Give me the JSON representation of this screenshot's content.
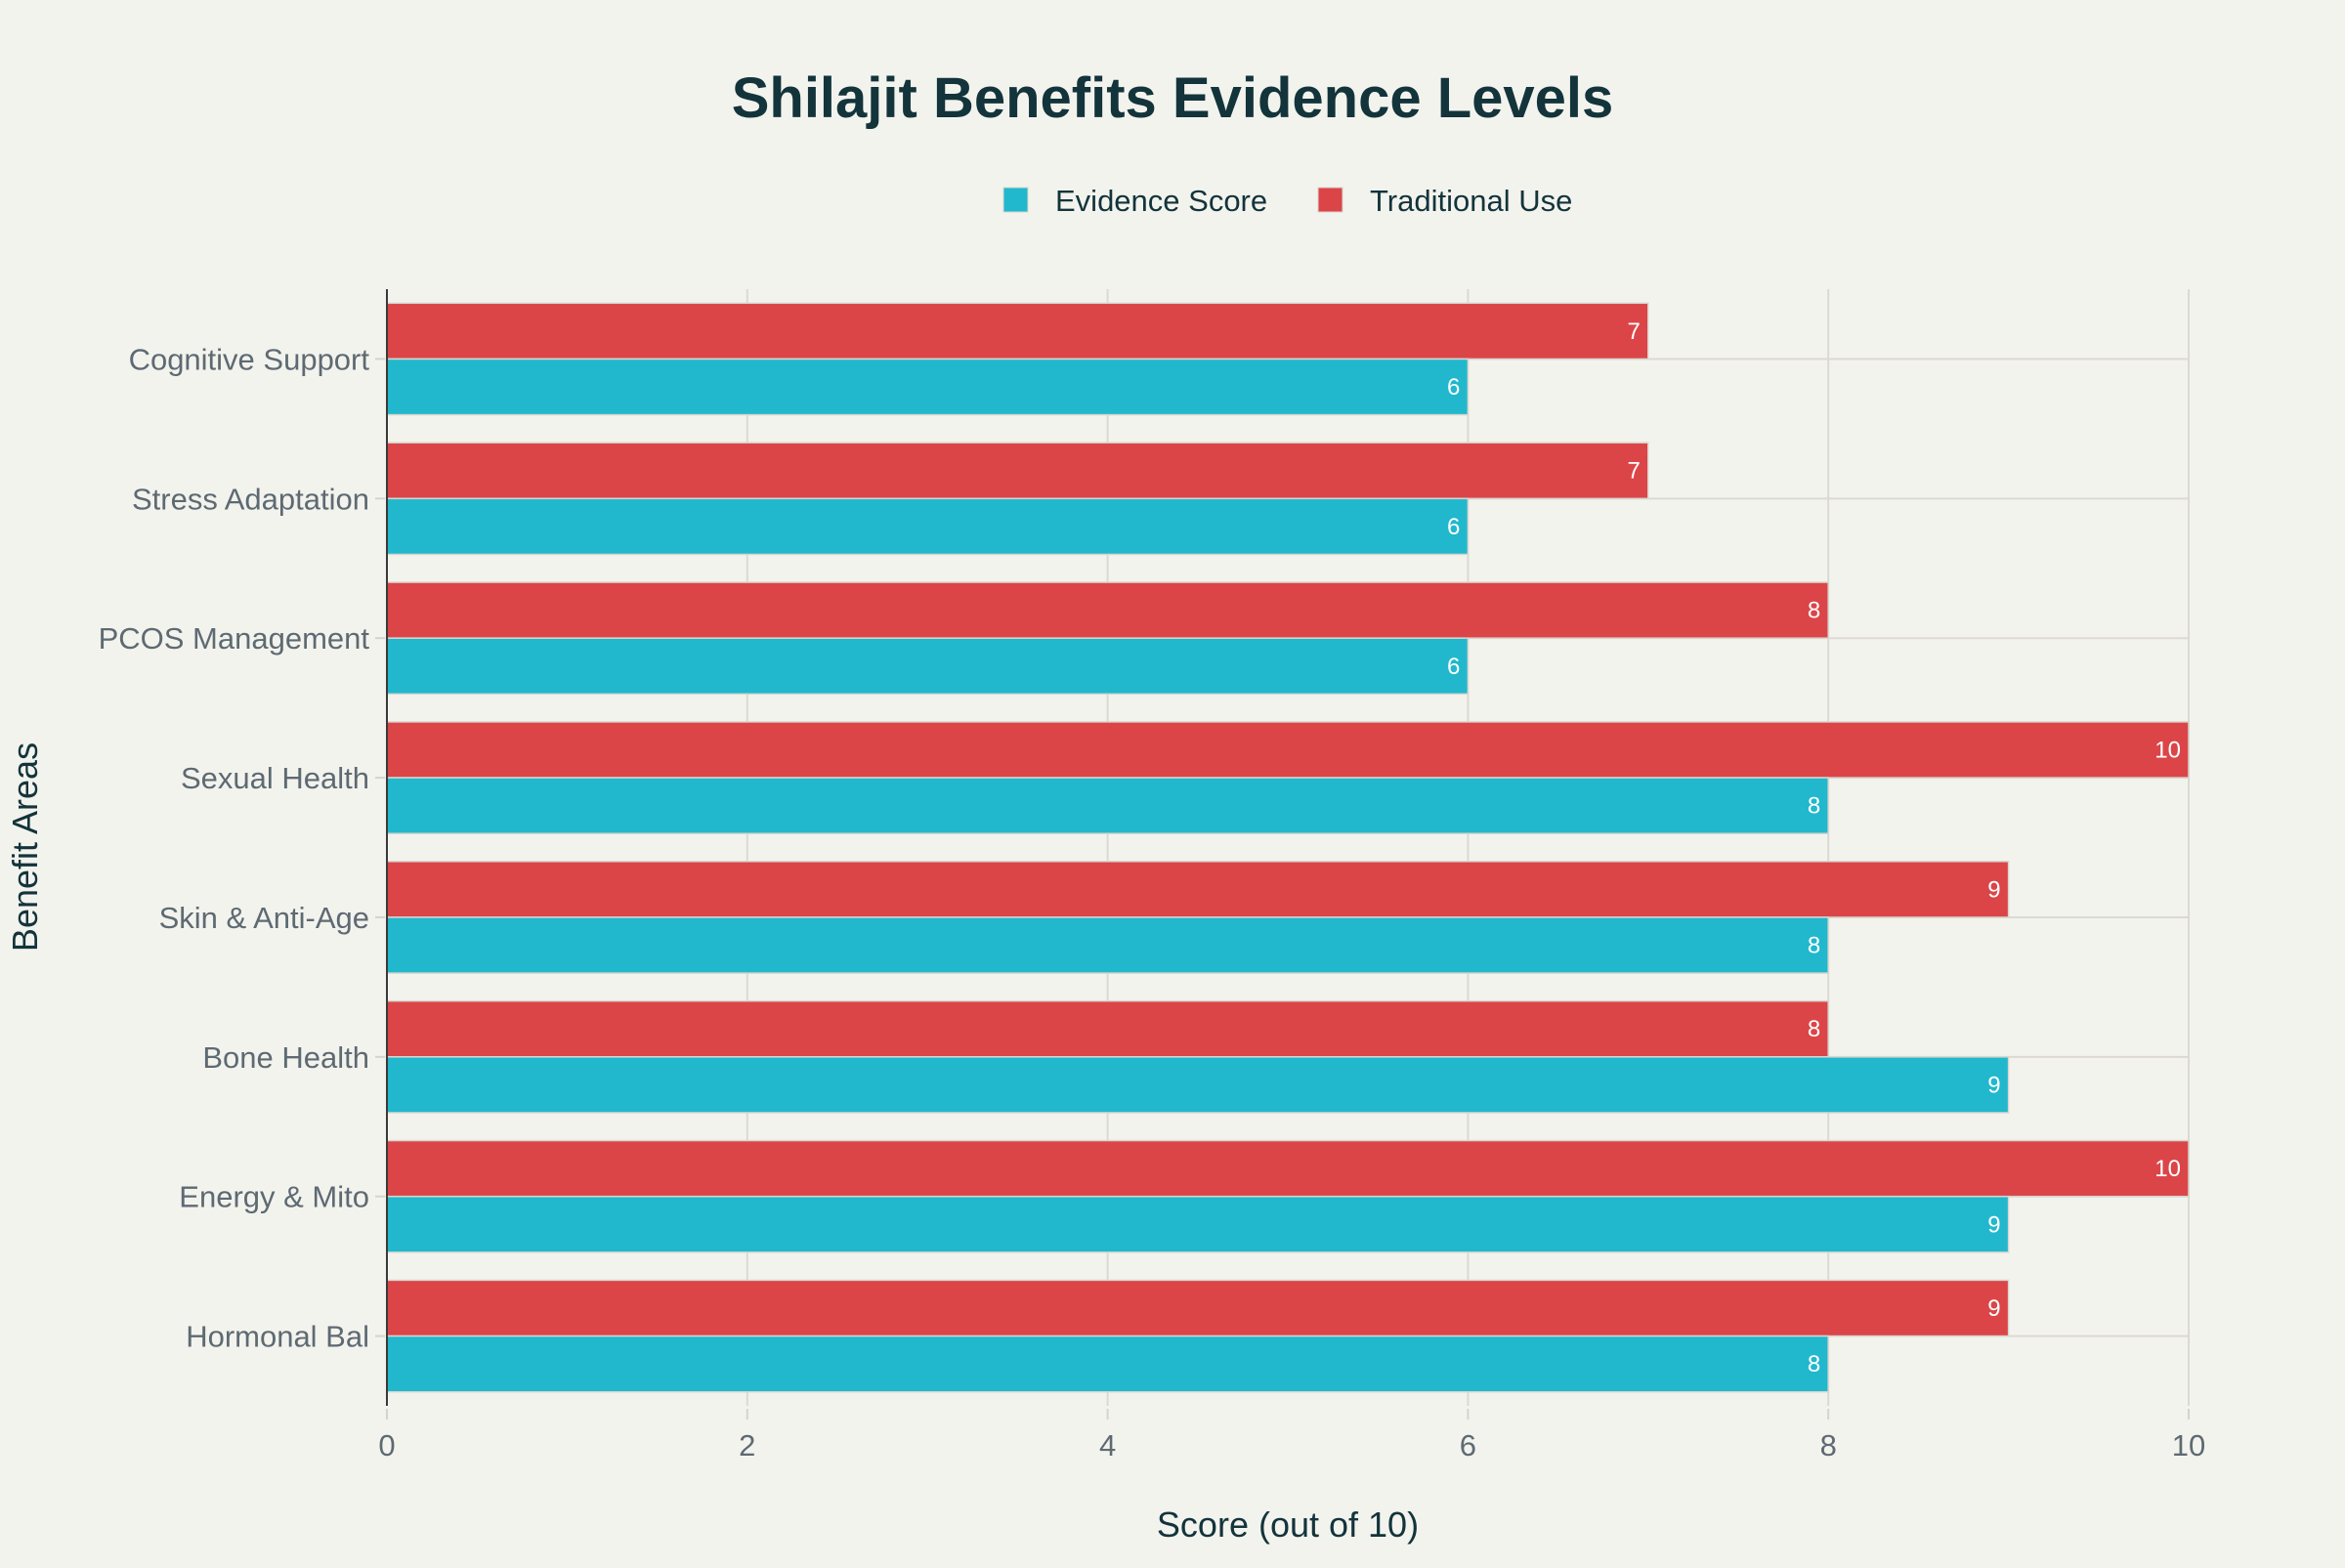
{
  "chart_data": {
    "type": "bar",
    "orientation": "horizontal",
    "title": "Shilajit Benefits Evidence Levels",
    "xlabel": "Score (out of 10)",
    "ylabel": "Benefit Areas",
    "xlim": [
      0,
      10
    ],
    "xticks": [
      0,
      2,
      4,
      6,
      8,
      10
    ],
    "grid": true,
    "legend_position": "top-center",
    "categories": [
      "Cognitive Support",
      "Stress Adaptation",
      "PCOS Management",
      "Sexual Health",
      "Skin & Anti-Age",
      "Bone Health",
      "Energy & Mito",
      "Hormonal Bal"
    ],
    "series": [
      {
        "name": "Evidence Score",
        "color": "#21b8cd",
        "values": [
          6,
          6,
          6,
          8,
          8,
          9,
          9,
          8
        ]
      },
      {
        "name": "Traditional Use",
        "color": "#db4548",
        "values": [
          7,
          7,
          8,
          10,
          9,
          8,
          10,
          9
        ]
      }
    ],
    "data_labels": true
  },
  "colors": {
    "background": "#f3f3ee",
    "title": "#13343b",
    "axis_text": "#5e6a72"
  }
}
